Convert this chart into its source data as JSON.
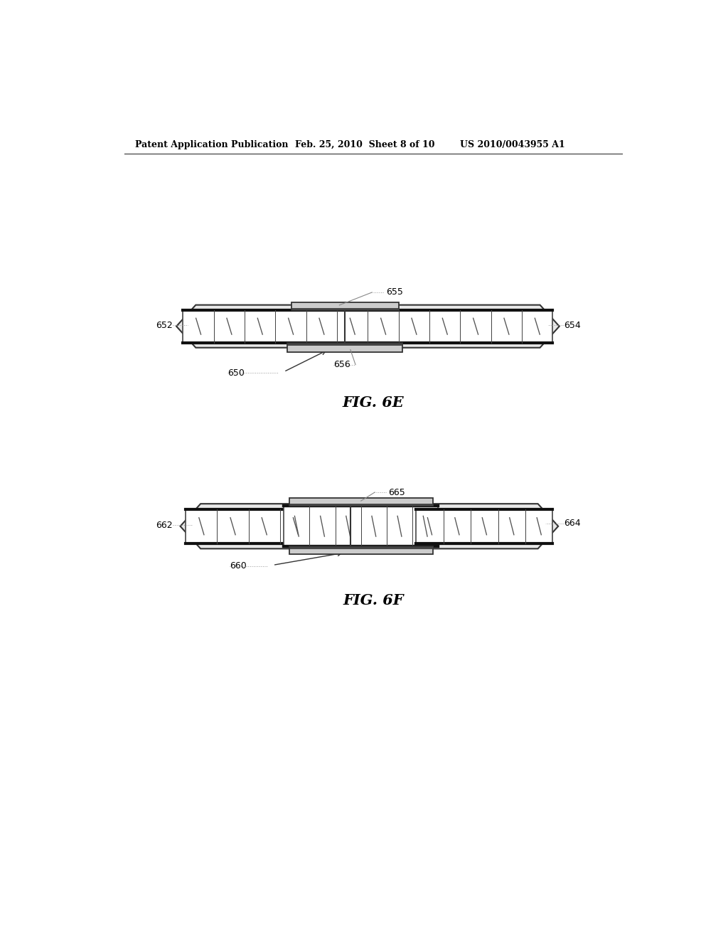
{
  "bg_color": "#ffffff",
  "header_left": "Patent Application Publication",
  "header_mid": "Feb. 25, 2010  Sheet 8 of 10",
  "header_right": "US 2010/0043955 A1",
  "fig6e_label": "FIG. 6E",
  "fig6f_label": "FIG. 6F",
  "line_color": "#333333",
  "dark_bar_color": "#222222",
  "plate_fill": "#cccccc",
  "panel_fill": "#f0f0f0",
  "panel_edge": "#333333",
  "inner_fill": "#ffffff",
  "comment_color": "#888888"
}
